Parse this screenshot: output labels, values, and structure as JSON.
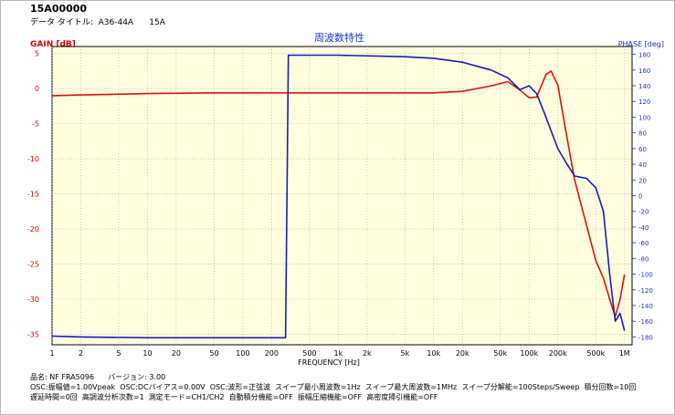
{
  "header": {
    "doc_id": "15A00000",
    "data_title": "データ タイトル:  A36-44A      15A"
  },
  "chart_data": {
    "type": "line",
    "title": "周波数特性",
    "xlabel": "FREQUENCY [Hz]",
    "ylabel_left": "GAIN [dB]",
    "ylabel_right": "PHASE [deg]",
    "x_scale": "log",
    "xlim": [
      1,
      1200000
    ],
    "ylim_left": [
      -36.5,
      6
    ],
    "ylim_right": [
      -190,
      190
    ],
    "grid": true,
    "x_ticks": [
      {
        "value": 1,
        "label": "1"
      },
      {
        "value": 2,
        "label": "2"
      },
      {
        "value": 5,
        "label": "5"
      },
      {
        "value": 10,
        "label": "10"
      },
      {
        "value": 20,
        "label": "20"
      },
      {
        "value": 50,
        "label": "50"
      },
      {
        "value": 100,
        "label": "100"
      },
      {
        "value": 200,
        "label": "200"
      },
      {
        "value": 500,
        "label": "500"
      },
      {
        "value": 1000,
        "label": "1k"
      },
      {
        "value": 2000,
        "label": "2k"
      },
      {
        "value": 5000,
        "label": "5k"
      },
      {
        "value": 10000,
        "label": "10k"
      },
      {
        "value": 20000,
        "label": "20k"
      },
      {
        "value": 50000,
        "label": "50k"
      },
      {
        "value": 100000,
        "label": "100k"
      },
      {
        "value": 200000,
        "label": "200k"
      },
      {
        "value": 500000,
        "label": "500k"
      },
      {
        "value": 1000000,
        "label": "1M"
      }
    ],
    "y_ticks_left": [
      5,
      0,
      -5,
      -10,
      -15,
      -20,
      -25,
      -30,
      -35
    ],
    "y_ticks_right": [
      180,
      160,
      140,
      120,
      100,
      80,
      60,
      40,
      20,
      0,
      -20,
      -40,
      -60,
      -80,
      -100,
      -120,
      -140,
      -160,
      -180
    ],
    "series": [
      {
        "axis": "left",
        "color": "#e01010",
        "x": [
          1,
          2,
          5,
          10,
          50,
          100,
          1000,
          10000,
          20000,
          40000,
          60000,
          80000,
          100000,
          120000,
          150000,
          170000,
          200000,
          250000,
          300000,
          400000,
          500000,
          600000,
          700000,
          800000,
          900000,
          1000000
        ],
        "y": [
          -1.0,
          -0.9,
          -0.8,
          -0.7,
          -0.6,
          -0.6,
          -0.6,
          -0.6,
          -0.4,
          0.4,
          1.0,
          -0.2,
          -1.3,
          -1.2,
          2.0,
          2.5,
          0.5,
          -7.0,
          -13.0,
          -19.5,
          -24.5,
          -27.0,
          -30.0,
          -32.5,
          -30.0,
          -26.5
        ]
      },
      {
        "axis": "right",
        "color": "#1a1ab8",
        "x": [
          1,
          2,
          10,
          100,
          280,
          290,
          300,
          1000,
          5000,
          10000,
          20000,
          40000,
          60000,
          80000,
          100000,
          120000,
          150000,
          200000,
          250000,
          300000,
          400000,
          500000,
          600000,
          700000,
          800000,
          900000,
          1000000
        ],
        "y": [
          -179,
          -180,
          -181,
          -181,
          -181,
          0,
          179,
          179,
          177,
          175,
          170,
          160,
          150,
          135,
          140,
          130,
          100,
          60,
          40,
          25,
          22,
          10,
          -20,
          -100,
          -160,
          -150,
          -172
        ]
      }
    ]
  },
  "footer": {
    "line1": "品名: NF FRA5096      バージョン: 3.00",
    "line2": "OSC:振幅値=1.00Vpeak  OSC:DCバイアス=0.00V  OSC:波形=正弦波  スイープ最小周波数=1Hz  スイープ最大周波数=1MHz  スイープ分解能=100Steps/Sweep  積分回数=10回",
    "line3": "遅延時間=0回  高調波分析次数=1  測定モード=CH1/CH2  自動積分機能=OFF  振幅圧縮機能=OFF  高密度掃引機能=OFF"
  }
}
